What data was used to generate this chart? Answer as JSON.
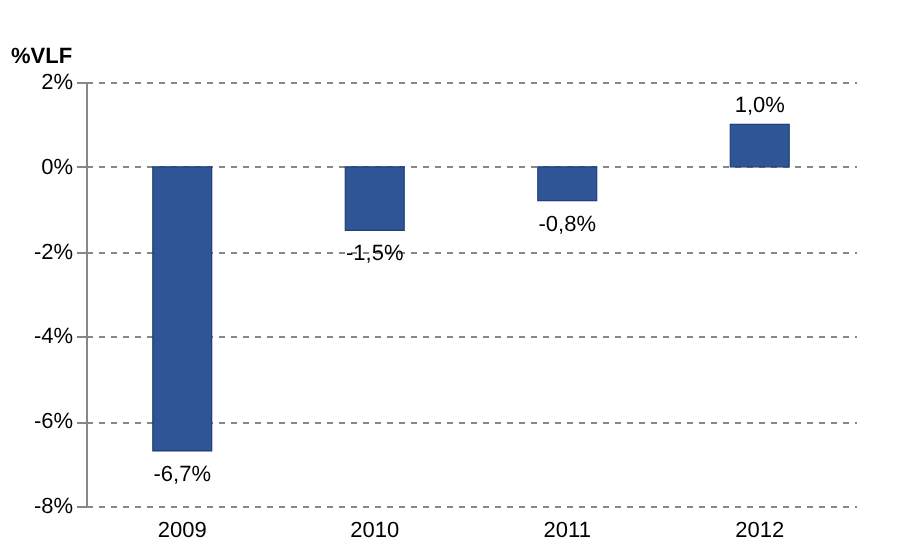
{
  "chart_data": {
    "type": "bar",
    "ylabel": "%VLF",
    "categories": [
      "2009",
      "2010",
      "2011",
      "2012"
    ],
    "values": [
      -6.7,
      -1.5,
      -0.8,
      1.0
    ],
    "value_labels": [
      "-6,7%",
      "-1,5%",
      "-0,8%",
      "1,0%"
    ],
    "color": "#2f5597",
    "ylim": [
      -8,
      2
    ],
    "yticks": [
      {
        "value": 2,
        "label": "2%"
      },
      {
        "value": 0,
        "label": "0%"
      },
      {
        "value": -2,
        "label": "-2%"
      },
      {
        "value": -4,
        "label": "-4%"
      },
      {
        "value": -6,
        "label": "-6%"
      },
      {
        "value": -8,
        "label": "-8%"
      }
    ],
    "grid": "y"
  }
}
